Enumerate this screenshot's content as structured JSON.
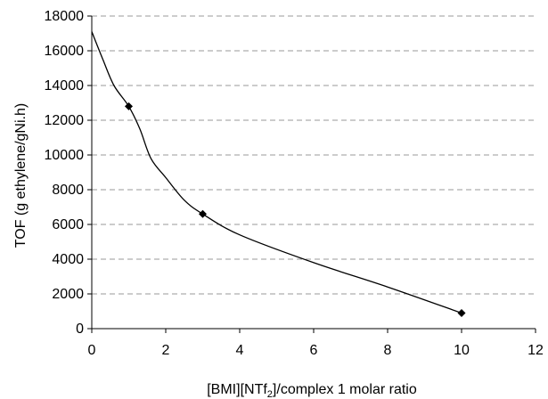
{
  "chart_data": {
    "type": "scatter",
    "title": "",
    "xlabel_parts": [
      "[BMI][NTf",
      "2",
      "]/complex 1 molar ratio"
    ],
    "ylabel": "TOF (g ethylene/gNi.h)",
    "xlim": [
      0,
      12
    ],
    "ylim": [
      0,
      18000
    ],
    "x_ticks": [
      "0",
      "2",
      "4",
      "6",
      "8",
      "10",
      "12"
    ],
    "y_ticks": [
      "0",
      "2000",
      "4000",
      "6000",
      "8000",
      "10000",
      "12000",
      "14000",
      "16000",
      "18000"
    ],
    "grid": "horizontal dashed",
    "series": [
      {
        "marker": "diamond",
        "color": "#000000",
        "points": [
          {
            "x": 1,
            "y": 12800
          },
          {
            "x": 3,
            "y": 6600
          },
          {
            "x": 10,
            "y": 900
          }
        ]
      }
    ],
    "trend_curve": {
      "color": "#000000",
      "points": [
        {
          "x": 0,
          "y": 17100
        },
        {
          "x": 0.3,
          "y": 15500
        },
        {
          "x": 0.6,
          "y": 14000
        },
        {
          "x": 1,
          "y": 12800
        },
        {
          "x": 1.3,
          "y": 11500
        },
        {
          "x": 1.6,
          "y": 9800
        },
        {
          "x": 2,
          "y": 8700
        },
        {
          "x": 2.5,
          "y": 7400
        },
        {
          "x": 3,
          "y": 6600
        },
        {
          "x": 4,
          "y": 5400
        },
        {
          "x": 6,
          "y": 3800
        },
        {
          "x": 8,
          "y": 2400
        },
        {
          "x": 10,
          "y": 900
        }
      ]
    }
  }
}
